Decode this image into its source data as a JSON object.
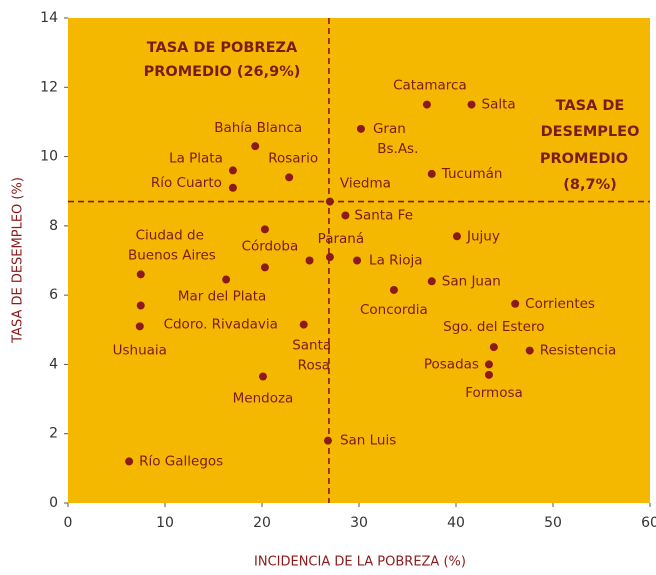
{
  "chart_data": {
    "type": "scatter",
    "color": "#8b1a1a",
    "background": "#f5b800",
    "xlabel": "INCIDENCIA DE LA POBREZA (%)",
    "ylabel": "TASA DE DESEMPLEO (%)",
    "xlim": [
      0,
      60
    ],
    "xticks": [
      0,
      10,
      20,
      30,
      40,
      50,
      60
    ],
    "ylim": [
      0,
      14
    ],
    "yticks": [
      0,
      2,
      4,
      6,
      8,
      10,
      12,
      14
    ],
    "vline": 26.9,
    "hline": 8.7,
    "annotations": [
      [
        "TASA DE POBREZA",
        "PROMEDIO (26,9%)"
      ],
      [
        "TASA DE",
        "DESEMPLEO",
        "PROMEDIO",
        "(8,7%)"
      ]
    ],
    "labels": [
      "Catamarca",
      "Salta",
      "Gran Bs.As.",
      "Bahía Blanca",
      "La Plata",
      "Rosario",
      "Tucumán",
      "Río Cuarto",
      "Viedma",
      "Santa Fe",
      "Ciudad de Buenos Aires",
      null,
      "Córdoba",
      null,
      "Paraná",
      "La Rioja",
      "Jujuy",
      "San Juan",
      "Concordia",
      "Corrientes",
      "Sgo. del Estero",
      "Resistencia",
      "Posadas",
      "Formosa",
      "Mar del Plata",
      "Cdoro. Rivadavia",
      "Ushuaia",
      "Santa Rosa",
      "Mendoza",
      "San Luis",
      "Río Gallegos"
    ],
    "x": [
      37.0,
      41.6,
      30.2,
      19.3,
      17.0,
      22.8,
      37.5,
      17.0,
      27.0,
      28.6,
      7.5,
      20.3,
      20.3,
      24.9,
      27.0,
      29.8,
      40.1,
      37.5,
      33.6,
      46.1,
      43.9,
      47.6,
      43.4,
      43.4,
      16.3,
      7.5,
      7.4,
      24.3,
      20.1,
      26.8,
      6.3
    ],
    "values": [
      11.5,
      11.5,
      10.8,
      10.3,
      9.6,
      9.4,
      9.5,
      9.1,
      8.7,
      8.3,
      6.6,
      7.9,
      6.8,
      7.0,
      7.1,
      7.0,
      7.7,
      6.4,
      6.15,
      5.75,
      4.5,
      4.4,
      4.0,
      3.7,
      6.45,
      5.7,
      5.1,
      5.15,
      3.65,
      1.8,
      1.2
    ]
  }
}
